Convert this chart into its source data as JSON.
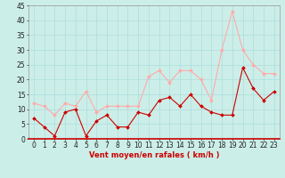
{
  "x": [
    0,
    1,
    2,
    3,
    4,
    5,
    6,
    7,
    8,
    9,
    10,
    11,
    12,
    13,
    14,
    15,
    16,
    17,
    18,
    19,
    20,
    21,
    22,
    23
  ],
  "wind_avg": [
    7,
    4,
    1,
    9,
    10,
    1,
    6,
    8,
    4,
    4,
    9,
    8,
    13,
    14,
    11,
    15,
    11,
    9,
    8,
    8,
    24,
    17,
    13,
    16
  ],
  "wind_gust": [
    12,
    11,
    8,
    12,
    11,
    16,
    9,
    11,
    11,
    11,
    11,
    21,
    23,
    19,
    23,
    23,
    20,
    13,
    30,
    43,
    30,
    25,
    22,
    22
  ],
  "avg_color": "#cc0000",
  "gust_color": "#ffaaaa",
  "bg_color": "#cceee8",
  "grid_color": "#aadddd",
  "xlabel": "Vent moyen/en rafales ( km/h )",
  "ylim": [
    0,
    45
  ],
  "yticks": [
    0,
    5,
    10,
    15,
    20,
    25,
    30,
    35,
    40,
    45
  ],
  "xticks": [
    0,
    1,
    2,
    3,
    4,
    5,
    6,
    7,
    8,
    9,
    10,
    11,
    12,
    13,
    14,
    15,
    16,
    17,
    18,
    19,
    20,
    21,
    22,
    23
  ],
  "axis_fontsize": 6,
  "tick_fontsize": 5.5
}
